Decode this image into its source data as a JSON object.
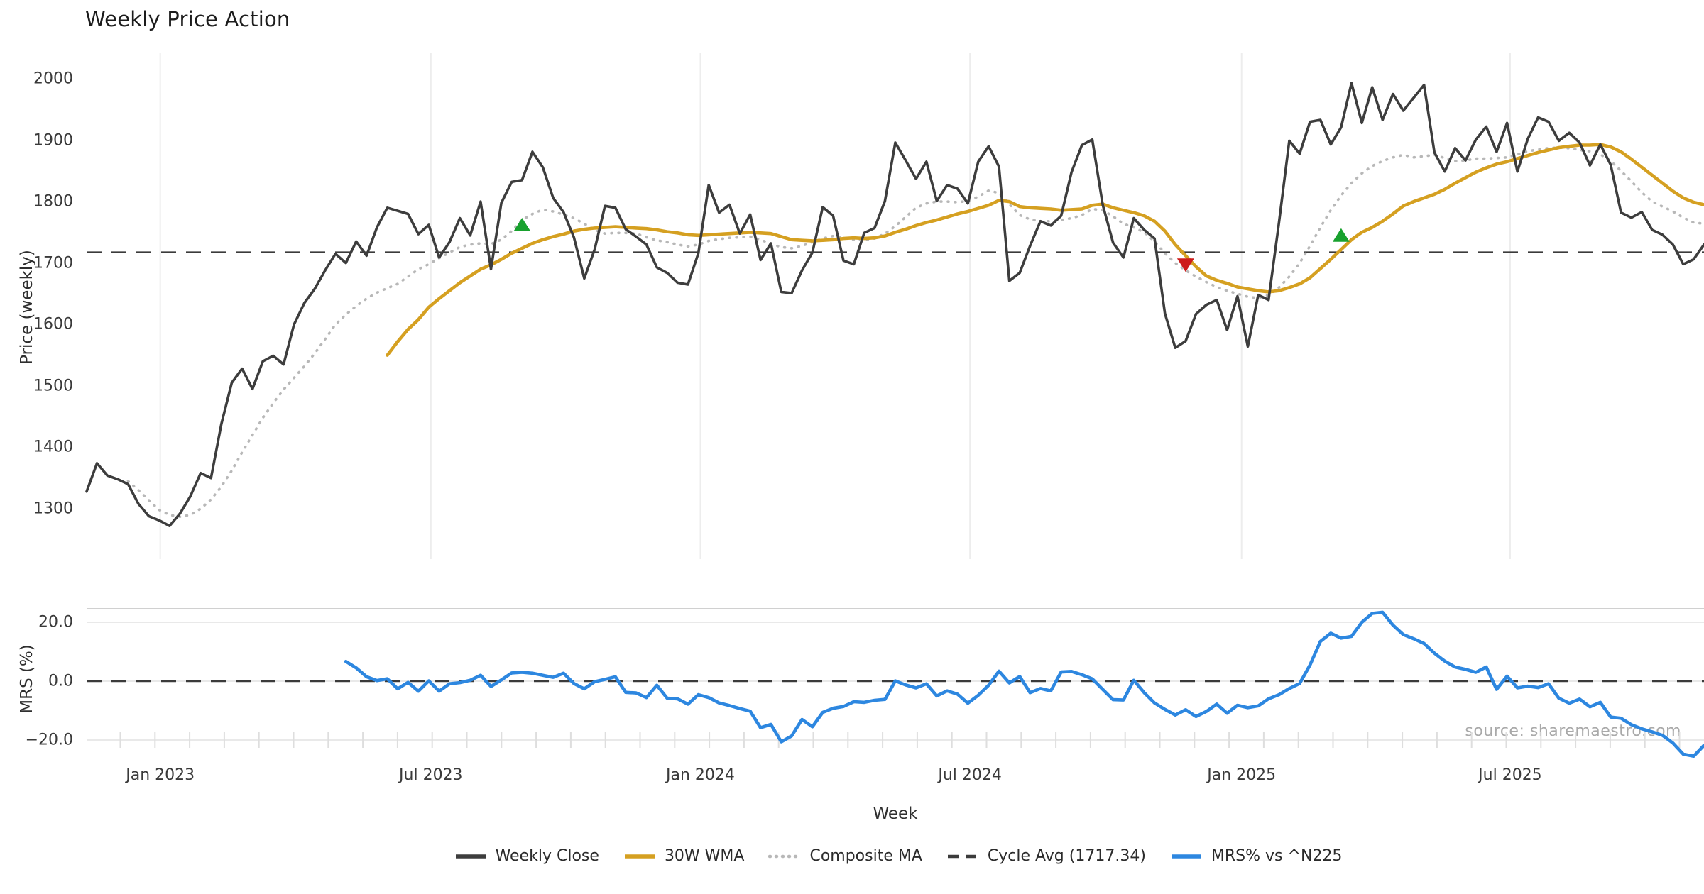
{
  "title": "Weekly Price Action",
  "watermark": "source: sharemaestro.com",
  "price_panel": {
    "ylabel": "Price (weekly)",
    "yticks": [
      2000,
      1900,
      1800,
      1700,
      1600,
      1500,
      1400,
      1300
    ]
  },
  "mrs_panel": {
    "ylabel": "MRS (%)",
    "yticks": [
      "20.0",
      "0.0",
      "−20.0"
    ],
    "ytick_values": [
      20,
      0,
      -20
    ]
  },
  "x_axis": {
    "label": "Week",
    "ticks": [
      {
        "label": "Jan 2023",
        "week": 7.1
      },
      {
        "label": "Jul 2023",
        "week": 33.2
      },
      {
        "label": "Jan 2024",
        "week": 59.2
      },
      {
        "label": "Jul 2024",
        "week": 85.2
      },
      {
        "label": "Jan 2025",
        "week": 111.4
      },
      {
        "label": "Jul 2025",
        "week": 137.3
      }
    ]
  },
  "legend": [
    {
      "label": "Weekly Close",
      "style": "solid",
      "color": "#3d3d3d"
    },
    {
      "label": "30W WMA",
      "style": "solid",
      "color": "#d5a021"
    },
    {
      "label": "Composite MA",
      "style": "dotted",
      "color": "#b8b8b8"
    },
    {
      "label": "Cycle Avg (1717.34)",
      "style": "dashed",
      "color": "#3b3b3b"
    },
    {
      "label": "MRS% vs ^N225",
      "style": "solid",
      "color": "#2d87e0"
    }
  ],
  "colors": {
    "close": "#3d3d3d",
    "wma": "#d5a021",
    "composite": "#b8b8b8",
    "cycle_avg": "#3b3b3b",
    "mrs": "#2d87e0",
    "buy_marker": "#18a12e",
    "sell_marker": "#cd1a1a",
    "gridline": "#ededed",
    "panel_spine": "#d0d0d0",
    "minor_tick": "#dedede"
  },
  "chart_data": {
    "type": "line",
    "x_unit": "week_index",
    "n_weeks": 157,
    "x_note": "weekly data from ~mid-Nov 2022 (index 0) to ~early Nov 2025 (index 156)",
    "cycle_avg": 1717.34,
    "price_axis_range": [
      1250,
      2040
    ],
    "mrs_axis_range": [
      -28,
      26
    ],
    "grid": "vertical-on-price-panel, horizontal-on-mrs-panel",
    "legend_position": "bottom-center",
    "series": [
      {
        "name": "Weekly Close",
        "panel": "price",
        "style": "solid",
        "color": "#3d3d3d",
        "values": [
          1328,
          1374,
          1354,
          1348,
          1340,
          1308,
          1288,
          1281,
          1272,
          1292,
          1320,
          1358,
          1350,
          1438,
          1505,
          1528,
          1495,
          1540,
          1549,
          1535,
          1600,
          1635,
          1658,
          1688,
          1715,
          1700,
          1735,
          1712,
          1758,
          1790,
          1785,
          1780,
          1747,
          1762,
          1709,
          1734,
          1773,
          1745,
          1800,
          1690,
          1798,
          1832,
          1835,
          1881,
          1856,
          1806,
          1783,
          1742,
          1675,
          1722,
          1793,
          1790,
          1755,
          1743,
          1730,
          1693,
          1684,
          1668,
          1665,
          1716,
          1827,
          1782,
          1795,
          1748,
          1779,
          1705,
          1732,
          1653,
          1651,
          1688,
          1717,
          1791,
          1777,
          1704,
          1698,
          1749,
          1757,
          1801,
          1896,
          1867,
          1837,
          1865,
          1801,
          1827,
          1821,
          1797,
          1865,
          1890,
          1857,
          1671,
          1684,
          1728,
          1768,
          1761,
          1777,
          1848,
          1892,
          1901,
          1795,
          1733,
          1709,
          1773,
          1754,
          1740,
          1618,
          1562,
          1573,
          1617,
          1632,
          1640,
          1591,
          1646,
          1564,
          1648,
          1640,
          1765,
          1899,
          1878,
          1930,
          1933,
          1893,
          1921,
          1993,
          1928,
          1986,
          1933,
          1975,
          1948,
          1969,
          1990,
          1880,
          1849,
          1887,
          1867,
          1901,
          1922,
          1881,
          1928,
          1849,
          1902,
          1937,
          1930,
          1899,
          1912,
          1896,
          1859,
          1893,
          1860,
          1782,
          1774,
          1783,
          1754,
          1746,
          1730,
          1698,
          1706,
          1730
        ]
      },
      {
        "name": "30W WMA",
        "panel": "price",
        "style": "solid",
        "color": "#d5a021",
        "values": [
          null,
          null,
          null,
          null,
          null,
          null,
          null,
          null,
          null,
          null,
          null,
          null,
          null,
          null,
          null,
          null,
          null,
          null,
          null,
          null,
          null,
          null,
          null,
          null,
          null,
          null,
          null,
          null,
          null,
          1550,
          1572,
          1592,
          1608,
          1628,
          1642,
          1655,
          1668,
          1679,
          1690,
          1697,
          1706,
          1716,
          1724,
          1732,
          1738,
          1743,
          1747,
          1752,
          1755,
          1757,
          1758,
          1759,
          1758,
          1757,
          1756,
          1754,
          1751,
          1749,
          1746,
          1745,
          1746,
          1747,
          1748,
          1749,
          1750,
          1749,
          1748,
          1743,
          1738,
          1737,
          1736,
          1737,
          1738,
          1740,
          1741,
          1740,
          1741,
          1744,
          1750,
          1755,
          1761,
          1766,
          1770,
          1775,
          1780,
          1784,
          1789,
          1794,
          1802,
          1800,
          1792,
          1790,
          1789,
          1788,
          1786,
          1787,
          1788,
          1794,
          1796,
          1790,
          1786,
          1782,
          1777,
          1768,
          1752,
          1730,
          1712,
          1694,
          1679,
          1672,
          1667,
          1661,
          1658,
          1655,
          1653,
          1655,
          1660,
          1666,
          1676,
          1691,
          1706,
          1722,
          1738,
          1750,
          1758,
          1768,
          1780,
          1793,
          1800,
          1806,
          1812,
          1820,
          1830,
          1839,
          1848,
          1855,
          1861,
          1865,
          1870,
          1875,
          1880,
          1884,
          1888,
          1890,
          1892,
          1892,
          1893,
          1889,
          1881,
          1869,
          1856,
          1843,
          1830,
          1817,
          1806,
          1799,
          1795
        ]
      },
      {
        "name": "Composite MA",
        "panel": "price",
        "style": "dotted",
        "color": "#b8b8b8",
        "values": [
          null,
          null,
          null,
          null,
          1345,
          1330,
          1314,
          1298,
          1290,
          1287,
          1290,
          1300,
          1315,
          1336,
          1362,
          1392,
          1420,
          1448,
          1472,
          1494,
          1513,
          1532,
          1553,
          1576,
          1600,
          1616,
          1630,
          1642,
          1652,
          1659,
          1666,
          1678,
          1690,
          1698,
          1708,
          1717,
          1726,
          1730,
          1732,
          1731,
          1738,
          1752,
          1770,
          1780,
          1787,
          1784,
          1779,
          1773,
          1764,
          1754,
          1748,
          1749,
          1749,
          1748,
          1742,
          1737,
          1734,
          1730,
          1727,
          1730,
          1736,
          1739,
          1741,
          1742,
          1743,
          1738,
          1731,
          1726,
          1724,
          1728,
          1734,
          1740,
          1744,
          1742,
          1738,
          1737,
          1740,
          1748,
          1760,
          1775,
          1790,
          1797,
          1800,
          1800,
          1799,
          1801,
          1808,
          1818,
          1814,
          1796,
          1778,
          1771,
          1768,
          1768,
          1770,
          1773,
          1778,
          1788,
          1786,
          1776,
          1764,
          1758,
          1750,
          1735,
          1716,
          1700,
          1688,
          1678,
          1669,
          1661,
          1655,
          1650,
          1645,
          1643,
          1648,
          1660,
          1678,
          1700,
          1728,
          1758,
          1786,
          1810,
          1830,
          1846,
          1858,
          1866,
          1872,
          1876,
          1872,
          1874,
          1876,
          1871,
          1866,
          1867,
          1870,
          1870,
          1871,
          1872,
          1877,
          1882,
          1885,
          1887,
          1888,
          1887,
          1884,
          1882,
          1877,
          1866,
          1850,
          1833,
          1815,
          1800,
          1792,
          1784,
          1774,
          1766,
          1764
        ]
      },
      {
        "name": "MRS% vs ^N225",
        "panel": "mrs",
        "style": "solid",
        "color": "#2d87e0",
        "values": [
          null,
          null,
          null,
          null,
          null,
          null,
          null,
          null,
          null,
          null,
          null,
          null,
          null,
          null,
          null,
          null,
          null,
          null,
          null,
          null,
          null,
          null,
          null,
          null,
          null,
          6.7,
          4.5,
          1.5,
          0.2,
          0.8,
          -2.6,
          -0.4,
          -3.4,
          0.1,
          -3.4,
          -0.9,
          -0.5,
          0.3,
          2.0,
          -1.8,
          0.4,
          2.8,
          3.0,
          2.7,
          2.0,
          1.3,
          2.7,
          -0.8,
          -2.6,
          -0.2,
          0.6,
          1.5,
          -3.8,
          -4.0,
          -5.6,
          -1.4,
          -5.8,
          -6.0,
          -7.8,
          -4.6,
          -5.6,
          -7.4,
          -8.3,
          -9.3,
          -10.2,
          -15.8,
          -14.7,
          -20.6,
          -18.6,
          -13.0,
          -15.5,
          -10.6,
          -9.2,
          -8.6,
          -7.0,
          -7.2,
          -6.5,
          -6.2,
          0.1,
          -1.3,
          -2.3,
          -0.9,
          -5.0,
          -3.3,
          -4.4,
          -7.5,
          -4.8,
          -1.4,
          3.4,
          -0.6,
          1.6,
          -3.9,
          -2.5,
          -3.3,
          3.1,
          3.3,
          2.2,
          0.8,
          -2.8,
          -6.3,
          -6.4,
          0.3,
          -3.9,
          -7.4,
          -9.6,
          -11.5,
          -9.7,
          -12.0,
          -10.3,
          -7.8,
          -10.9,
          -8.2,
          -9.0,
          -8.4,
          -6.0,
          -4.6,
          -2.5,
          -0.8,
          5.5,
          13.5,
          16.3,
          14.6,
          15.2,
          20.0,
          23.0,
          23.4,
          19.0,
          15.8,
          14.4,
          12.8,
          9.5,
          6.8,
          4.8,
          4.0,
          3.0,
          4.8,
          -2.8,
          1.7,
          -2.3,
          -1.7,
          -2.2,
          -0.9,
          -5.8,
          -7.5,
          -6.1,
          -8.7,
          -7.2,
          -12.2,
          -12.6,
          -14.8,
          -16.2,
          -17.2,
          -18.4,
          -21.0,
          -24.8,
          -25.5,
          -21.8
        ]
      }
    ],
    "signals": {
      "buy": [
        {
          "week": 42,
          "price": 1762
        },
        {
          "week": 121,
          "price": 1745
        }
      ],
      "sell": [
        {
          "week": 106,
          "price": 1697
        }
      ]
    }
  }
}
